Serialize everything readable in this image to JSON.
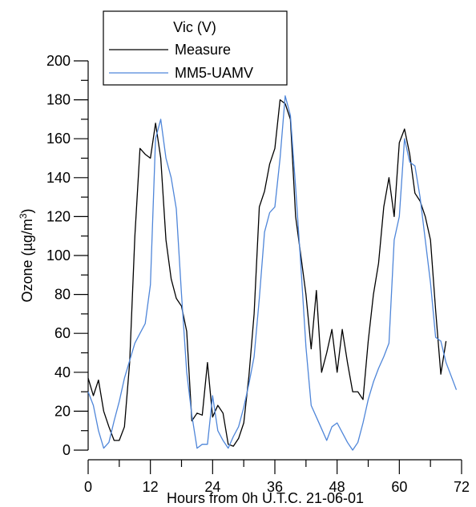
{
  "chart_data": {
    "type": "line",
    "title": "",
    "xlabel": "Hours from 0h U.T.C. 21-06-01",
    "ylabel_prefix": "Ozone (µg/m",
    "ylabel_sup": "3",
    "ylabel_suffix": ")",
    "xlim": [
      0,
      72
    ],
    "ylim": [
      0,
      200
    ],
    "xticks": [
      0,
      12,
      24,
      36,
      48,
      60,
      72
    ],
    "yticks": [
      0,
      20,
      40,
      60,
      80,
      100,
      120,
      140,
      160,
      180,
      200
    ],
    "grid": false,
    "legend": {
      "title": "Vic (V)",
      "placement": "top-left"
    },
    "series": [
      {
        "name": "Measure",
        "color": "#000000",
        "x": [
          0,
          1,
          2,
          3,
          4,
          5,
          6,
          7,
          8,
          9,
          10,
          11,
          12,
          13,
          14,
          15,
          16,
          17,
          18,
          19,
          20,
          21,
          22,
          23,
          24,
          25,
          26,
          27,
          28,
          29,
          30,
          31,
          32,
          33,
          34,
          35,
          36,
          37,
          38,
          39,
          40,
          41,
          42,
          43,
          44,
          45,
          46,
          47,
          48,
          49,
          50,
          51,
          52,
          53,
          54,
          55,
          56,
          57,
          58,
          59,
          60,
          61,
          62,
          63,
          64,
          65,
          66,
          67,
          68,
          69,
          70
        ],
        "y": [
          37,
          28,
          36,
          20,
          12,
          5,
          5,
          12,
          45,
          110,
          155,
          152,
          150,
          168,
          150,
          108,
          88,
          78,
          74,
          61,
          15,
          19,
          18,
          45,
          17,
          23,
          19,
          3,
          2,
          6,
          14,
          38,
          70,
          125,
          133,
          147,
          155,
          180,
          178,
          170,
          120,
          100,
          80,
          52,
          82,
          40,
          50,
          62,
          40,
          62,
          45,
          30,
          30,
          26,
          56,
          80,
          96,
          125,
          140,
          120,
          158,
          165,
          152,
          132,
          128,
          120,
          108,
          72,
          39,
          56,
          null
        ]
      },
      {
        "name": "MM5-UAMV",
        "color": "#4f86d9",
        "x": [
          0,
          1,
          2,
          3,
          4,
          5,
          6,
          7,
          8,
          9,
          10,
          11,
          12,
          13,
          14,
          15,
          16,
          17,
          18,
          19,
          20,
          21,
          22,
          23,
          24,
          25,
          26,
          27,
          28,
          29,
          30,
          31,
          32,
          33,
          34,
          35,
          36,
          37,
          38,
          39,
          40,
          41,
          42,
          43,
          44,
          45,
          46,
          47,
          48,
          49,
          50,
          51,
          52,
          53,
          54,
          55,
          56,
          57,
          58,
          59,
          60,
          61,
          62,
          63,
          64,
          65,
          66,
          67,
          68,
          69,
          70,
          71
        ],
        "y": [
          30,
          23,
          10,
          1,
          4,
          15,
          25,
          37,
          46,
          55,
          60,
          65,
          85,
          160,
          170,
          150,
          140,
          124,
          80,
          40,
          18,
          1,
          3,
          3,
          28,
          10,
          5,
          1,
          7,
          12,
          22,
          34,
          48,
          78,
          112,
          122,
          125,
          150,
          182,
          172,
          135,
          95,
          53,
          23,
          17,
          11,
          5,
          12,
          14,
          9,
          4,
          0,
          4,
          14,
          26,
          35,
          42,
          48,
          55,
          108,
          120,
          160,
          148,
          146,
          130,
          108,
          86,
          58,
          56,
          45,
          38,
          31
        ]
      }
    ]
  }
}
